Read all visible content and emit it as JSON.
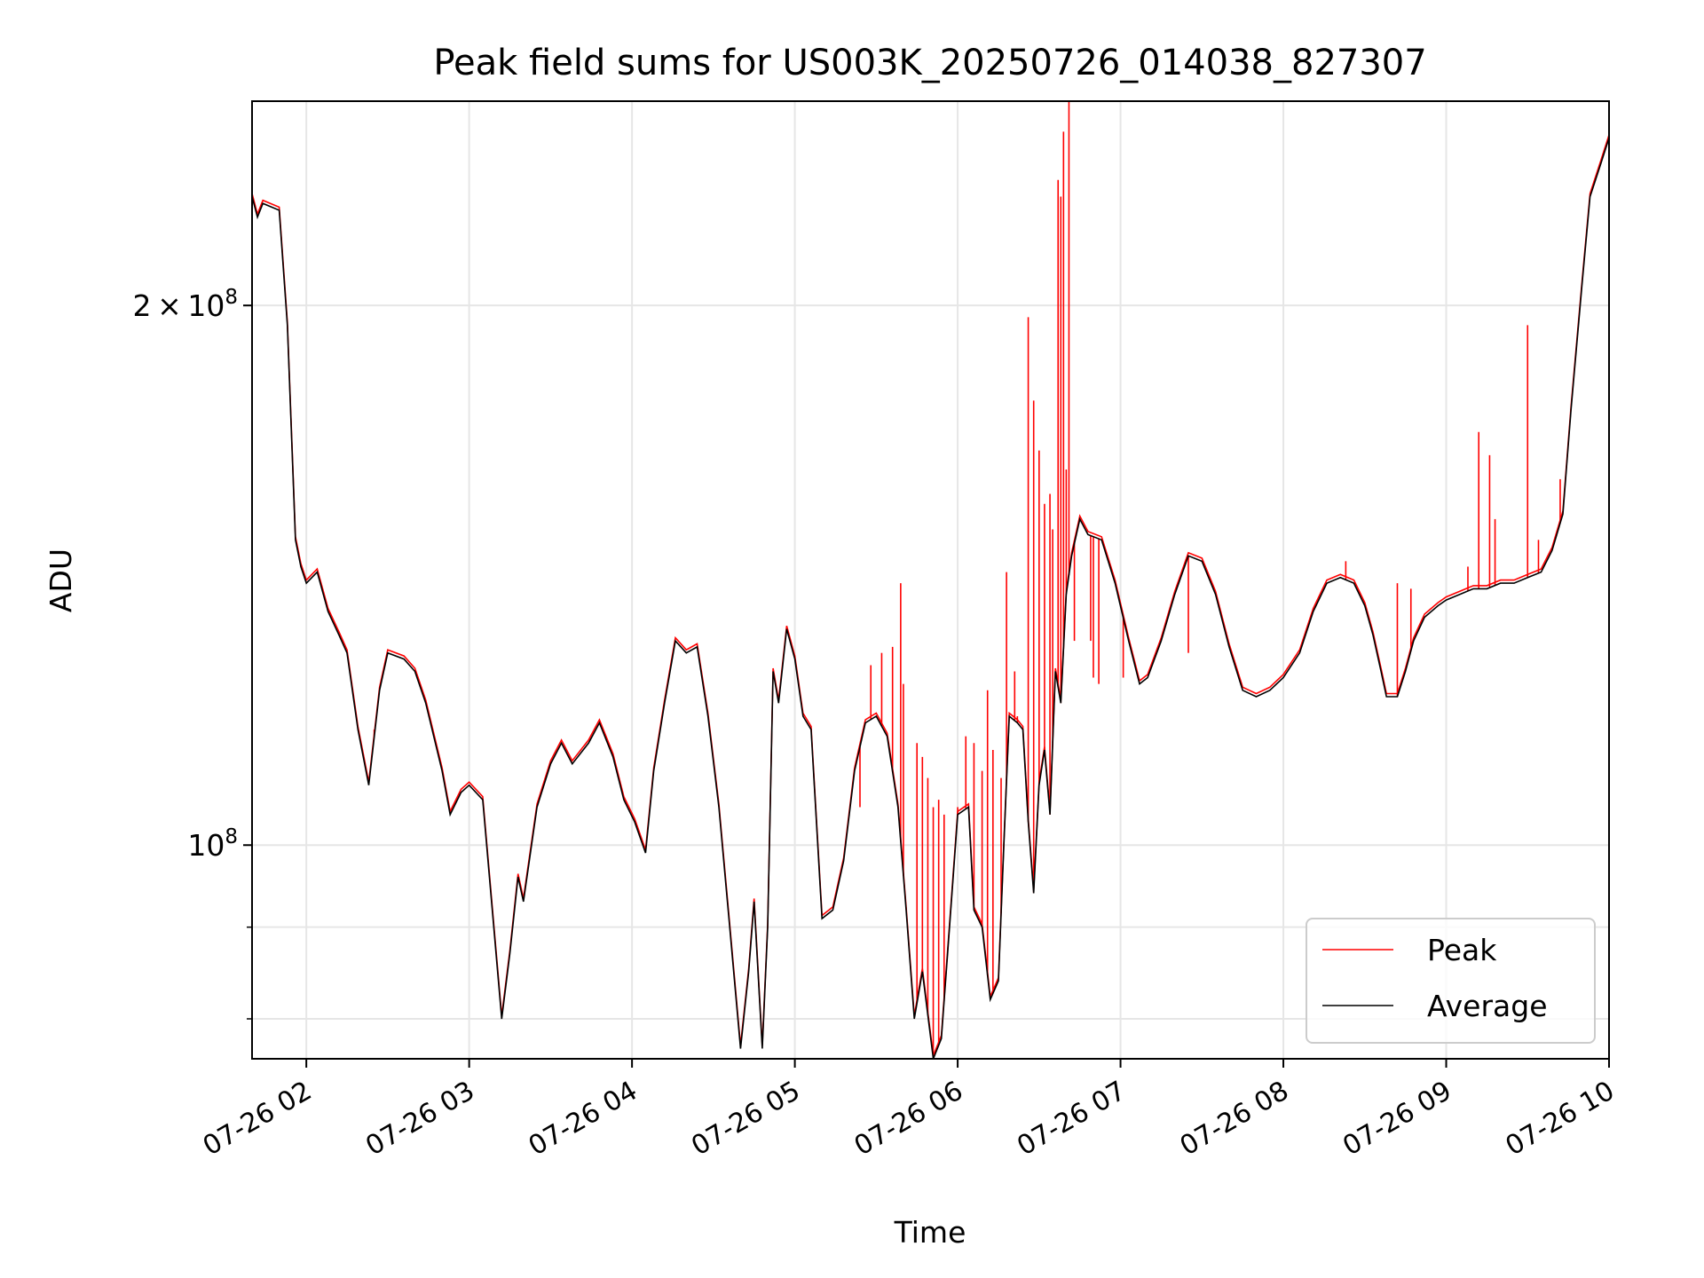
{
  "chart_data": {
    "type": "line",
    "title": "Peak field sums for US003K_20250726_014038_827307",
    "xlabel": "Time",
    "ylabel": "ADU",
    "x_axis": {
      "type": "time",
      "range": [
        "2025-07-26 01:40",
        "2025-07-26 10:00"
      ],
      "ticks": [
        {
          "t": "2025-07-26 02:00",
          "label": "07-26 02"
        },
        {
          "t": "2025-07-26 03:00",
          "label": "07-26 03"
        },
        {
          "t": "2025-07-26 04:00",
          "label": "07-26 04"
        },
        {
          "t": "2025-07-26 05:00",
          "label": "07-26 05"
        },
        {
          "t": "2025-07-26 06:00",
          "label": "07-26 06"
        },
        {
          "t": "2025-07-26 07:00",
          "label": "07-26 07"
        },
        {
          "t": "2025-07-26 08:00",
          "label": "07-26 08"
        },
        {
          "t": "2025-07-26 09:00",
          "label": "07-26 09"
        },
        {
          "t": "2025-07-26 10:00",
          "label": "07-26 10"
        }
      ]
    },
    "y_axis": {
      "scale": "log",
      "range": [
        76000000,
        260000000
      ],
      "major_ticks": [
        {
          "value": 100000000,
          "base": "10",
          "exp": "8"
        },
        {
          "value": 200000000,
          "mant": "2",
          "times": "×",
          "base": "10",
          "exp": "8"
        }
      ],
      "minor_ticks": [
        80000000,
        90000000
      ]
    },
    "grid": true,
    "legend": {
      "position": "lower right",
      "entries": [
        "Peak",
        "Average"
      ]
    },
    "series": [
      {
        "name": "Average",
        "color": "#000000",
        "points": [
          [
            "2025-07-26 01:40",
            230000000.0
          ],
          [
            "2025-07-26 01:42",
            224000000.0
          ],
          [
            "2025-07-26 01:44",
            228000000.0
          ],
          [
            "2025-07-26 01:50",
            226000000.0
          ],
          [
            "2025-07-26 01:53",
            195000000.0
          ],
          [
            "2025-07-26 01:56",
            148000000.0
          ],
          [
            "2025-07-26 01:58",
            143000000.0
          ],
          [
            "2025-07-26 02:00",
            140000000.0
          ],
          [
            "2025-07-26 02:04",
            142000000.0
          ],
          [
            "2025-07-26 02:08",
            135000000.0
          ],
          [
            "2025-07-26 02:12",
            131000000.0
          ],
          [
            "2025-07-26 02:15",
            128000000.0
          ],
          [
            "2025-07-26 02:19",
            116000000.0
          ],
          [
            "2025-07-26 02:23",
            108000000.0
          ],
          [
            "2025-07-26 02:27",
            122000000.0
          ],
          [
            "2025-07-26 02:30",
            128000000.0
          ],
          [
            "2025-07-26 02:36",
            127000000.0
          ],
          [
            "2025-07-26 02:40",
            125000000.0
          ],
          [
            "2025-07-26 02:44",
            120000000.0
          ],
          [
            "2025-07-26 02:50",
            110000000.0
          ],
          [
            "2025-07-26 02:53",
            104000000.0
          ],
          [
            "2025-07-26 02:57",
            107000000.0
          ],
          [
            "2025-07-26 03:00",
            108000000.0
          ],
          [
            "2025-07-26 03:05",
            106000000.0
          ],
          [
            "2025-07-26 03:12",
            80000000.0
          ],
          [
            "2025-07-26 03:15",
            87000000.0
          ],
          [
            "2025-07-26 03:18",
            96000000.0
          ],
          [
            "2025-07-26 03:20",
            93000000.0
          ],
          [
            "2025-07-26 03:25",
            105000000.0
          ],
          [
            "2025-07-26 03:30",
            111000000.0
          ],
          [
            "2025-07-26 03:34",
            114000000.0
          ],
          [
            "2025-07-26 03:38",
            111000000.0
          ],
          [
            "2025-07-26 03:44",
            114000000.0
          ],
          [
            "2025-07-26 03:48",
            117000000.0
          ],
          [
            "2025-07-26 03:53",
            112000000.0
          ],
          [
            "2025-07-26 03:57",
            106000000.0
          ],
          [
            "2025-07-26 04:01",
            103000000.0
          ],
          [
            "2025-07-26 04:05",
            99000000.0
          ],
          [
            "2025-07-26 04:08",
            110000000.0
          ],
          [
            "2025-07-26 04:12",
            120000000.0
          ],
          [
            "2025-07-26 04:16",
            130000000.0
          ],
          [
            "2025-07-26 04:20",
            128000000.0
          ],
          [
            "2025-07-26 04:24",
            129000000.0
          ],
          [
            "2025-07-26 04:28",
            118000000.0
          ],
          [
            "2025-07-26 04:32",
            105000000.0
          ],
          [
            "2025-07-26 04:36",
            90000000.0
          ],
          [
            "2025-07-26 04:40",
            77000000.0
          ],
          [
            "2025-07-26 04:43",
            85000000.0
          ],
          [
            "2025-07-26 04:45",
            93000000.0
          ],
          [
            "2025-07-26 04:48",
            77000000.0
          ],
          [
            "2025-07-26 04:50",
            90000000.0
          ],
          [
            "2025-07-26 04:52",
            125000000.0
          ],
          [
            "2025-07-26 04:54",
            120000000.0
          ],
          [
            "2025-07-26 04:57",
            132000000.0
          ],
          [
            "2025-07-26 05:00",
            127000000.0
          ],
          [
            "2025-07-26 05:03",
            118000000.0
          ],
          [
            "2025-07-26 05:06",
            116000000.0
          ],
          [
            "2025-07-26 05:10",
            91000000.0
          ],
          [
            "2025-07-26 05:14",
            92000000.0
          ],
          [
            "2025-07-26 05:18",
            98000000.0
          ],
          [
            "2025-07-26 05:22",
            110000000.0
          ],
          [
            "2025-07-26 05:26",
            117000000.0
          ],
          [
            "2025-07-26 05:30",
            118000000.0
          ],
          [
            "2025-07-26 05:34",
            115000000.0
          ],
          [
            "2025-07-26 05:38",
            105000000.0
          ],
          [
            "2025-07-26 05:41",
            92000000.0
          ],
          [
            "2025-07-26 05:44",
            80000000.0
          ],
          [
            "2025-07-26 05:47",
            85000000.0
          ],
          [
            "2025-07-26 05:51",
            76000000.0
          ],
          [
            "2025-07-26 05:54",
            78000000.0
          ],
          [
            "2025-07-26 05:57",
            90000000.0
          ],
          [
            "2025-07-26 06:00",
            104000000.0
          ],
          [
            "2025-07-26 06:04",
            105000000.0
          ],
          [
            "2025-07-26 06:06",
            92000000.0
          ],
          [
            "2025-07-26 06:09",
            90000000.0
          ],
          [
            "2025-07-26 06:12",
            82000000.0
          ],
          [
            "2025-07-26 06:15",
            84000000.0
          ],
          [
            "2025-07-26 06:17",
            100000000.0
          ],
          [
            "2025-07-26 06:19",
            118000000.0
          ],
          [
            "2025-07-26 06:22",
            117000000.0
          ],
          [
            "2025-07-26 06:24",
            116000000.0
          ],
          [
            "2025-07-26 06:26",
            103000000.0
          ],
          [
            "2025-07-26 06:28",
            94000000.0
          ],
          [
            "2025-07-26 06:30",
            108000000.0
          ],
          [
            "2025-07-26 06:32",
            113000000.0
          ],
          [
            "2025-07-26 06:34",
            104000000.0
          ],
          [
            "2025-07-26 06:36",
            125000000.0
          ],
          [
            "2025-07-26 06:38",
            120000000.0
          ],
          [
            "2025-07-26 06:40",
            138000000.0
          ],
          [
            "2025-07-26 06:42",
            145000000.0
          ],
          [
            "2025-07-26 06:45",
            152000000.0
          ],
          [
            "2025-07-26 06:48",
            149000000.0
          ],
          [
            "2025-07-26 06:53",
            148000000.0
          ],
          [
            "2025-07-26 06:58",
            140000000.0
          ],
          [
            "2025-07-26 07:03",
            130000000.0
          ],
          [
            "2025-07-26 07:07",
            123000000.0
          ],
          [
            "2025-07-26 07:10",
            124000000.0
          ],
          [
            "2025-07-26 07:15",
            130000000.0
          ],
          [
            "2025-07-26 07:20",
            138000000.0
          ],
          [
            "2025-07-26 07:25",
            145000000.0
          ],
          [
            "2025-07-26 07:30",
            144000000.0
          ],
          [
            "2025-07-26 07:35",
            138000000.0
          ],
          [
            "2025-07-26 07:40",
            129000000.0
          ],
          [
            "2025-07-26 07:45",
            122000000.0
          ],
          [
            "2025-07-26 07:50",
            121000000.0
          ],
          [
            "2025-07-26 07:55",
            122000000.0
          ],
          [
            "2025-07-26 08:00",
            124000000.0
          ],
          [
            "2025-07-26 08:06",
            128000000.0
          ],
          [
            "2025-07-26 08:11",
            135000000.0
          ],
          [
            "2025-07-26 08:16",
            140000000.0
          ],
          [
            "2025-07-26 08:21",
            141000000.0
          ],
          [
            "2025-07-26 08:26",
            140000000.0
          ],
          [
            "2025-07-26 08:30",
            136000000.0
          ],
          [
            "2025-07-26 08:33",
            131000000.0
          ],
          [
            "2025-07-26 08:36",
            125000000.0
          ],
          [
            "2025-07-26 08:38",
            121000000.0
          ],
          [
            "2025-07-26 08:42",
            121000000.0
          ],
          [
            "2025-07-26 08:45",
            125000000.0
          ],
          [
            "2025-07-26 08:48",
            130000000.0
          ],
          [
            "2025-07-26 08:52",
            134000000.0
          ],
          [
            "2025-07-26 08:57",
            136000000.0
          ],
          [
            "2025-07-26 09:00",
            137000000.0
          ],
          [
            "2025-07-26 09:05",
            138000000.0
          ],
          [
            "2025-07-26 09:10",
            139000000.0
          ],
          [
            "2025-07-26 09:15",
            139000000.0
          ],
          [
            "2025-07-26 09:20",
            140000000.0
          ],
          [
            "2025-07-26 09:25",
            140000000.0
          ],
          [
            "2025-07-26 09:30",
            141000000.0
          ],
          [
            "2025-07-26 09:35",
            142000000.0
          ],
          [
            "2025-07-26 09:39",
            146000000.0
          ],
          [
            "2025-07-26 09:43",
            153000000.0
          ],
          [
            "2025-07-26 09:46",
            175000000.0
          ],
          [
            "2025-07-26 09:50",
            205000000.0
          ],
          [
            "2025-07-26 09:53",
            230000000.0
          ],
          [
            "2025-07-26 09:57",
            240000000.0
          ],
          [
            "2025-07-26 10:00",
            248000000.0
          ]
        ]
      },
      {
        "name": "Peak",
        "color": "#ff0000",
        "spikes": [
          [
            "2025-07-26 02:25",
            116000000.0
          ],
          [
            "2025-07-26 05:20",
            104000000.0
          ],
          [
            "2025-07-26 05:24",
            105000000.0
          ],
          [
            "2025-07-26 05:28",
            126000000.0
          ],
          [
            "2025-07-26 05:32",
            128000000.0
          ],
          [
            "2025-07-26 05:36",
            129000000.0
          ],
          [
            "2025-07-26 05:39",
            140000000.0
          ],
          [
            "2025-07-26 05:40",
            123000000.0
          ],
          [
            "2025-07-26 05:45",
            114000000.0
          ],
          [
            "2025-07-26 05:47",
            112000000.0
          ],
          [
            "2025-07-26 05:49",
            109000000.0
          ],
          [
            "2025-07-26 05:51",
            105000000.0
          ],
          [
            "2025-07-26 05:53",
            106000000.0
          ],
          [
            "2025-07-26 05:55",
            104000000.0
          ],
          [
            "2025-07-26 06:00",
            105000000.0
          ],
          [
            "2025-07-26 06:03",
            115000000.0
          ],
          [
            "2025-07-26 06:06",
            114000000.0
          ],
          [
            "2025-07-26 06:09",
            110000000.0
          ],
          [
            "2025-07-26 06:11",
            122000000.0
          ],
          [
            "2025-07-26 06:13",
            113000000.0
          ],
          [
            "2025-07-26 06:16",
            109000000.0
          ],
          [
            "2025-07-26 06:18",
            142000000.0
          ],
          [
            "2025-07-26 06:21",
            125000000.0
          ],
          [
            "2025-07-26 06:22",
            118000000.0
          ],
          [
            "2025-07-26 06:26",
            197000000.0
          ],
          [
            "2025-07-26 06:28",
            177000000.0
          ],
          [
            "2025-07-26 06:30",
            166000000.0
          ],
          [
            "2025-07-26 06:32",
            155000000.0
          ],
          [
            "2025-07-26 06:34",
            157000000.0
          ],
          [
            "2025-07-26 06:35",
            150000000.0
          ],
          [
            "2025-07-26 06:37",
            235000000.0
          ],
          [
            "2025-07-26 06:38",
            230000000.0
          ],
          [
            "2025-07-26 06:39",
            250000000.0
          ],
          [
            "2025-07-26 06:40",
            162000000.0
          ],
          [
            "2025-07-26 06:41",
            260000000.0
          ],
          [
            "2025-07-26 06:43",
            130000000.0
          ],
          [
            "2025-07-26 06:49",
            130000000.0
          ],
          [
            "2025-07-26 06:50",
            124000000.0
          ],
          [
            "2025-07-26 06:52",
            123000000.0
          ],
          [
            "2025-07-26 07:01",
            124000000.0
          ],
          [
            "2025-07-26 07:25",
            128000000.0
          ],
          [
            "2025-07-26 08:23",
            144000000.0
          ],
          [
            "2025-07-26 08:42",
            140000000.0
          ],
          [
            "2025-07-26 08:47",
            139000000.0
          ],
          [
            "2025-07-26 09:08",
            143000000.0
          ],
          [
            "2025-07-26 09:12",
            170000000.0
          ],
          [
            "2025-07-26 09:16",
            165000000.0
          ],
          [
            "2025-07-26 09:18",
            152000000.0
          ],
          [
            "2025-07-26 09:30",
            195000000.0
          ],
          [
            "2025-07-26 09:34",
            148000000.0
          ],
          [
            "2025-07-26 09:42",
            160000000.0
          ]
        ]
      }
    ]
  }
}
